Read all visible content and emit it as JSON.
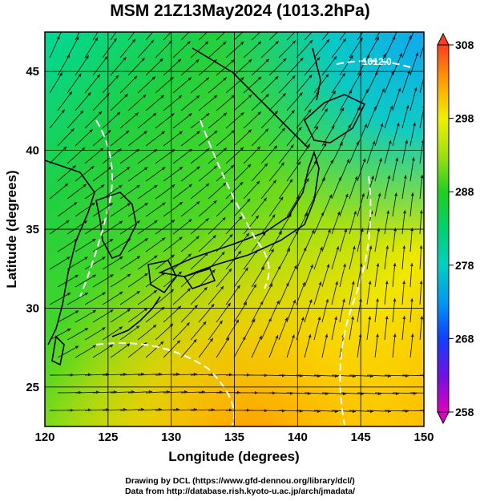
{
  "title": "MSM 21Z13May2024 (1013.2hPa)",
  "x_axis": {
    "label": "Longitude (degrees)",
    "ticks": [
      "120",
      "125",
      "130",
      "135",
      "140",
      "145",
      "150"
    ],
    "range": [
      120,
      150
    ]
  },
  "y_axis": {
    "label": "Latitude (degrees)",
    "ticks": [
      "25",
      "30",
      "35",
      "40",
      "45"
    ],
    "range": [
      22.5,
      47.5
    ]
  },
  "colorbar": {
    "ticks": [
      "258",
      "268",
      "278",
      "288",
      "298",
      "308"
    ],
    "range": [
      258,
      308
    ],
    "colors": [
      "#e000c0",
      "#5010e0",
      "#1040ff",
      "#00c8e8",
      "#00d080",
      "#20d020",
      "#a0e010",
      "#f0f000",
      "#ffa000",
      "#ff4020"
    ]
  },
  "contour_label": "1012.0",
  "credits": {
    "line1": "Drawing by DCL (https://www.gfd-dennou.org/library/dcl/)",
    "line2": "Data from http://database.rish.kyoto-u.ac.jp/arch/jmadata/"
  }
}
